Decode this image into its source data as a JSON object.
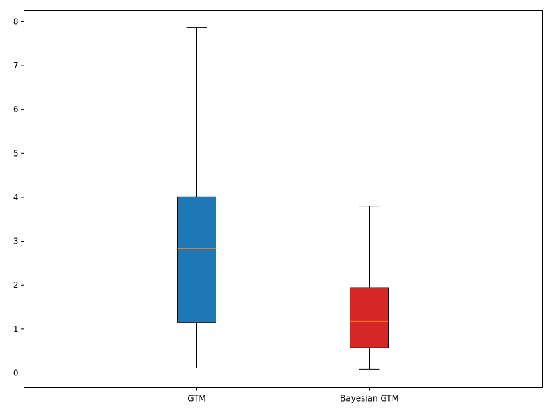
{
  "chart_data": {
    "type": "box",
    "categories": [
      "GTM",
      "Bayesian GTM"
    ],
    "boxes": [
      {
        "label": "GTM",
        "whisker_low": 0.11,
        "q1": 1.15,
        "median": 2.83,
        "q3": 4.01,
        "whisker_high": 7.87,
        "fill": "#1f77b4"
      },
      {
        "label": "Bayesian GTM",
        "whisker_low": 0.08,
        "q1": 0.57,
        "median": 1.18,
        "q3": 1.94,
        "whisker_high": 3.8,
        "fill": "#d62728"
      }
    ],
    "ylim": [
      -0.33,
      8.25
    ],
    "yticks": [
      "0",
      "1",
      "2",
      "3",
      "4",
      "5",
      "6",
      "7",
      "8"
    ],
    "title": "",
    "xlabel": "",
    "ylabel": "",
    "grid": false,
    "median_color": "#ff7f0e"
  }
}
